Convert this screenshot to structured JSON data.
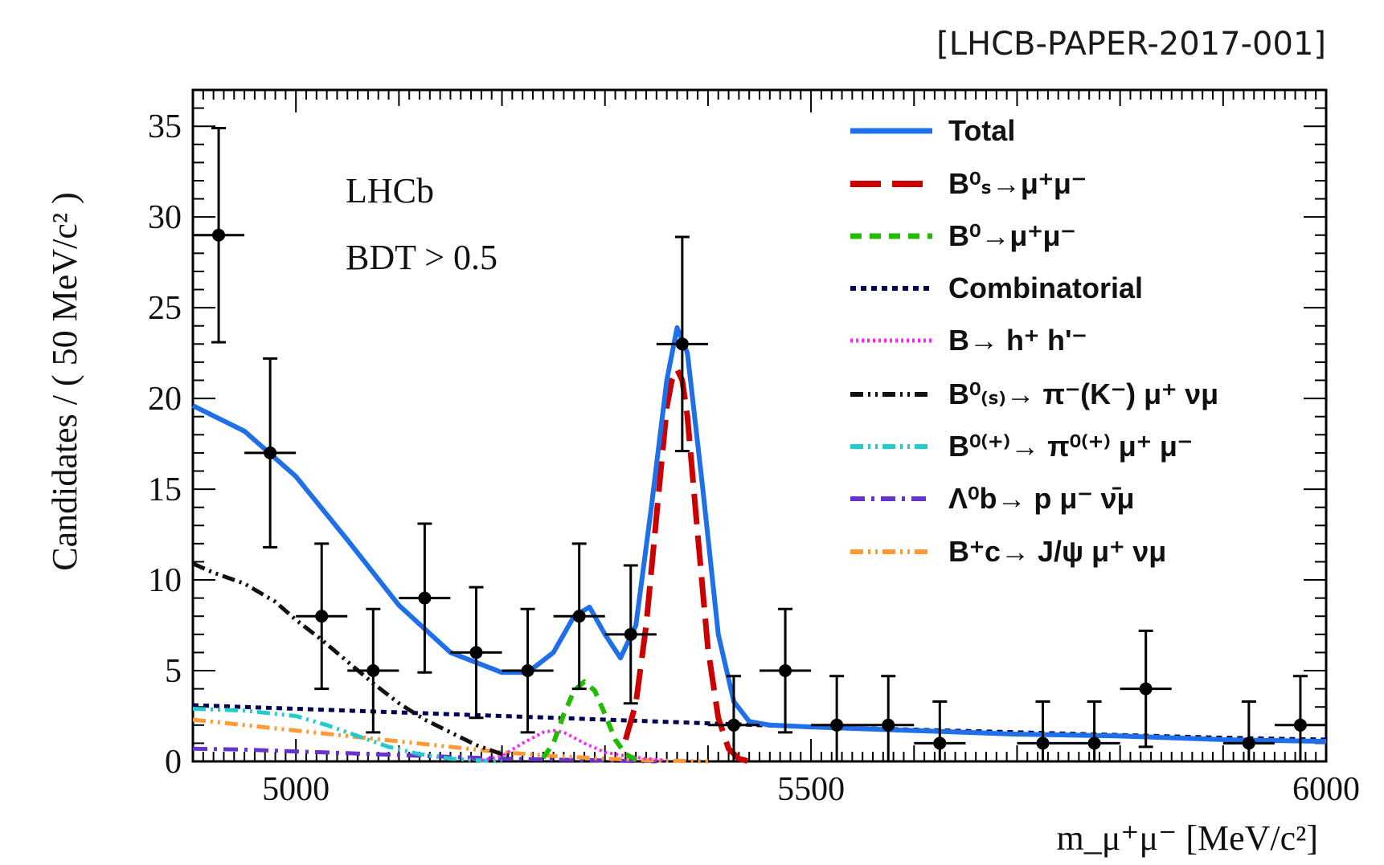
{
  "reference": "[LHCB-PAPER-2017-001]",
  "annotations": [
    "LHCb",
    "BDT > 0.5"
  ],
  "colors": {
    "total": "#1f6fe8",
    "bs": "#cc0000",
    "b0": "#22bb00",
    "combinatorial": "#000055",
    "bhh": "#ff22ff",
    "b_pi_mu_nu": "#111111",
    "b_pi_mu_mu": "#22cccc",
    "lambda_b": "#6633cc",
    "bc": "#ff9933",
    "data": "#000000"
  },
  "legend": {
    "total": "Total",
    "bs": "B⁰ₛ→μ⁺μ⁻",
    "b0": "B⁰→μ⁺μ⁻",
    "combinatorial": "Combinatorial",
    "bhh": "B→ h⁺ h'⁻",
    "b_pi_mu_nu": "B⁰₍ₛ₎→ π⁻(K⁻) μ⁺ νμ",
    "b_pi_mu_mu": "B⁰⁽⁺⁾→ π⁰⁽⁺⁾ μ⁺ μ⁻",
    "lambda_b": "Λ⁰b→ p μ⁻ ν̄μ",
    "bc": "B⁺c→ J/ψ μ⁺ νμ"
  },
  "chart_data": {
    "type": "scatter",
    "xlabel": "m_μ⁺μ⁻ [MeV/c²]",
    "ylabel": "Candidates / ( 50 MeV/c² )",
    "xlim": [
      4900,
      6000
    ],
    "ylim": [
      0,
      37
    ],
    "xticks": [
      5000,
      5500,
      6000
    ],
    "yticks": [
      0,
      5,
      10,
      15,
      20,
      25,
      30,
      35
    ],
    "legend_position": "top-right",
    "points": [
      {
        "x": 4925,
        "y": 29,
        "err": 5.9
      },
      {
        "x": 4975,
        "y": 17,
        "err": 5.2
      },
      {
        "x": 5025,
        "y": 8,
        "err": 4.0
      },
      {
        "x": 5075,
        "y": 5,
        "err": 3.4
      },
      {
        "x": 5125,
        "y": 9,
        "err": 4.1
      },
      {
        "x": 5175,
        "y": 6,
        "err": 3.6
      },
      {
        "x": 5225,
        "y": 5,
        "err": 3.4
      },
      {
        "x": 5275,
        "y": 8,
        "err": 4.0
      },
      {
        "x": 5325,
        "y": 7,
        "err": 3.8
      },
      {
        "x": 5375,
        "y": 23,
        "err": 5.9
      },
      {
        "x": 5425,
        "y": 2,
        "err": 2.7
      },
      {
        "x": 5475,
        "y": 5,
        "err": 3.4
      },
      {
        "x": 5525,
        "y": 2,
        "err": 2.7
      },
      {
        "x": 5575,
        "y": 2,
        "err": 2.7
      },
      {
        "x": 5625,
        "y": 1,
        "err": 2.3
      },
      {
        "x": 5725,
        "y": 1,
        "err": 2.3
      },
      {
        "x": 5775,
        "y": 1,
        "err": 2.3
      },
      {
        "x": 5825,
        "y": 4,
        "err": 3.2
      },
      {
        "x": 5925,
        "y": 1,
        "err": 2.3
      },
      {
        "x": 5975,
        "y": 2,
        "err": 2.7
      }
    ],
    "point_half_width_x": 25,
    "curves": {
      "total": {
        "x": [
          4900,
          4950,
          5000,
          5050,
          5100,
          5150,
          5200,
          5225,
          5250,
          5270,
          5285,
          5300,
          5315,
          5330,
          5345,
          5360,
          5370,
          5380,
          5395,
          5410,
          5425,
          5440,
          5460,
          5500,
          5600,
          5700,
          5800,
          5900,
          6000
        ],
        "y": [
          19.6,
          18.2,
          15.7,
          12.2,
          8.6,
          6.0,
          4.9,
          4.9,
          6.0,
          8.0,
          8.5,
          7.0,
          5.7,
          7.5,
          14.0,
          21.0,
          23.9,
          22.5,
          15.0,
          7.0,
          3.3,
          2.2,
          2.0,
          1.9,
          1.7,
          1.5,
          1.4,
          1.2,
          1.1
        ]
      },
      "bs": {
        "x": [
          5320,
          5330,
          5340,
          5350,
          5360,
          5365,
          5370,
          5375,
          5380,
          5390,
          5400,
          5410,
          5420,
          5430,
          5440
        ],
        "y": [
          1.2,
          3.2,
          7.5,
          13.5,
          19.5,
          21.0,
          21.6,
          21.0,
          19.0,
          12.5,
          6.2,
          2.4,
          0.7,
          0.15,
          0.0
        ]
      },
      "b0": {
        "x": [
          5240,
          5250,
          5260,
          5270,
          5280,
          5290,
          5300,
          5310,
          5320,
          5330
        ],
        "y": [
          0.2,
          1.0,
          2.6,
          3.9,
          4.4,
          3.9,
          2.6,
          1.2,
          0.4,
          0.1
        ]
      },
      "combinatorial": {
        "x": [
          4900,
          5000,
          5100,
          5200,
          5300,
          5400,
          5500,
          5600,
          5700,
          5800,
          5900,
          6000
        ],
        "y": [
          3.1,
          2.9,
          2.7,
          2.5,
          2.3,
          2.1,
          1.9,
          1.75,
          1.6,
          1.45,
          1.3,
          1.2
        ]
      },
      "bhh": {
        "x": [
          5180,
          5200,
          5220,
          5240,
          5250,
          5260,
          5280,
          5300,
          5320,
          5340,
          5360
        ],
        "y": [
          0.05,
          0.3,
          1.0,
          1.6,
          1.7,
          1.6,
          1.0,
          0.5,
          0.3,
          0.15,
          0.05
        ]
      },
      "b_pi_mu_nu": {
        "x": [
          4900,
          4920,
          4950,
          4980,
          5000,
          5025,
          5050,
          5075,
          5100,
          5125,
          5150,
          5175,
          5200,
          5210
        ],
        "y": [
          10.9,
          10.4,
          9.8,
          8.8,
          7.8,
          6.7,
          5.5,
          4.3,
          3.2,
          2.3,
          1.6,
          0.9,
          0.4,
          0.3
        ]
      },
      "b_pi_mu_mu": {
        "x": [
          4900,
          4950,
          5000,
          5030,
          5060,
          5090,
          5120,
          5150,
          5180,
          5200
        ],
        "y": [
          2.9,
          2.8,
          2.5,
          2.0,
          1.4,
          0.8,
          0.4,
          0.15,
          0.05,
          0.0
        ]
      },
      "lambda_b": {
        "x": [
          4900,
          4950,
          5000,
          5050,
          5100,
          5150,
          5200,
          5250,
          5300,
          5350
        ],
        "y": [
          0.7,
          0.65,
          0.55,
          0.45,
          0.35,
          0.25,
          0.15,
          0.1,
          0.05,
          0.0
        ]
      },
      "bc": {
        "x": [
          4900,
          4950,
          5000,
          5050,
          5100,
          5150,
          5200,
          5250,
          5300,
          5350,
          5400
        ],
        "y": [
          2.3,
          2.0,
          1.7,
          1.4,
          1.1,
          0.8,
          0.5,
          0.3,
          0.15,
          0.05,
          0.0
        ]
      }
    }
  }
}
